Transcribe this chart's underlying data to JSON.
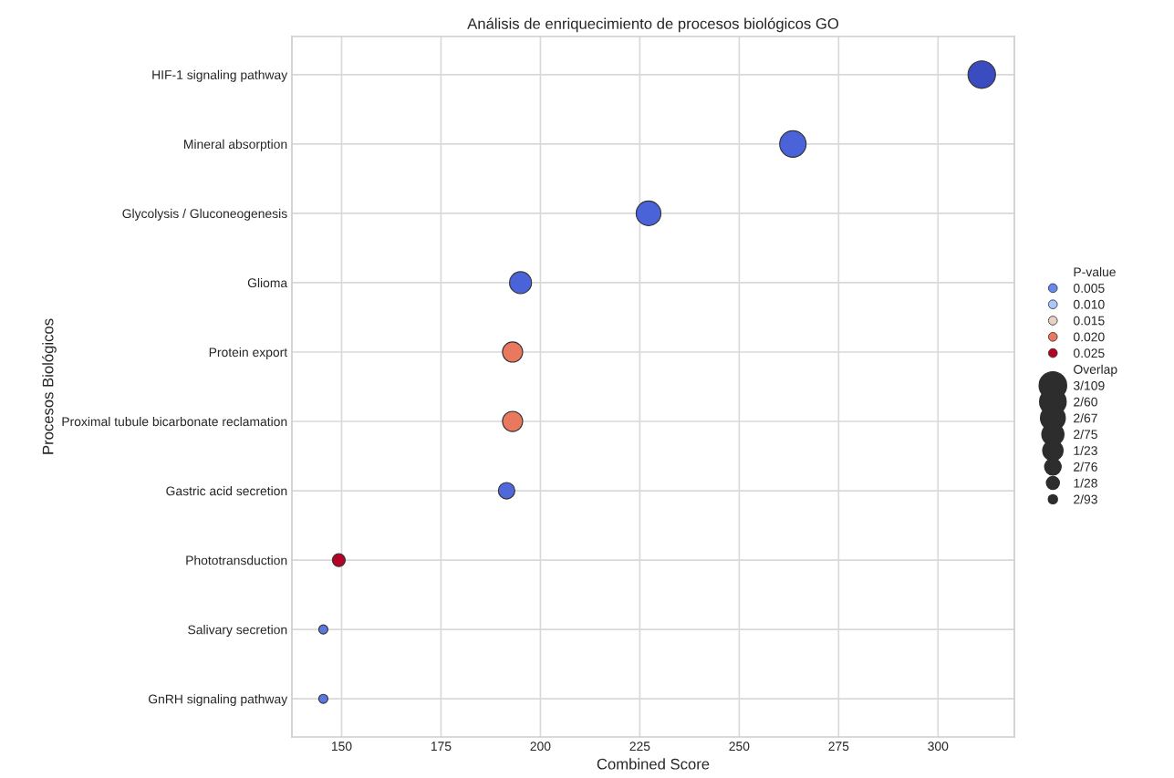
{
  "chart_data": {
    "type": "bubble",
    "title": "Análisis de enriquecimiento de procesos biológicos GO",
    "xlabel": "Combined Score",
    "ylabel": "Procesos Biológicos",
    "categories": [
      "HIF-1 signaling pathway",
      "Mineral absorption",
      "Glycolysis / Gluconeogenesis",
      "Glioma",
      "Protein export",
      "Proximal tubule bicarbonate reclamation",
      "Gastric acid secretion",
      "Phototransduction",
      "Salivary secretion",
      "GnRH signaling pathway"
    ],
    "series": [
      {
        "name": "0.005",
        "color": "#6788ee",
        "values": [
          311.0,
          263.5,
          227.2,
          195.0,
          null,
          null,
          191.5,
          null,
          145.4,
          145.4
        ],
        "sizes": [
          1,
          0.93,
          0.81,
          0.64,
          null,
          null,
          0.36,
          null,
          0.11,
          0.11
        ],
        "colors": [
          "#3b4cc0",
          "#4a63d8",
          "#4a63d8",
          "#4a63d8",
          null,
          null,
          "#4f69d9",
          null,
          "#5a78e0",
          "#5a78e0"
        ]
      },
      {
        "name": "0.010",
        "color": "#aac7fd",
        "values": [
          null,
          null,
          null,
          null,
          null,
          null,
          null,
          null,
          null,
          null
        ]
      },
      {
        "name": "0.015",
        "color": "#ead0c2",
        "values": [
          null,
          null,
          null,
          null,
          null,
          null,
          null,
          null,
          null,
          null
        ]
      },
      {
        "name": "0.020",
        "color": "#e8795e",
        "values": [
          null,
          null,
          null,
          null,
          193.0,
          193.0,
          null,
          null,
          null,
          null
        ],
        "sizes": [
          null,
          null,
          null,
          null,
          0.54,
          0.54,
          null,
          null,
          null,
          null
        ]
      },
      {
        "name": "0.025",
        "color": "#b40426",
        "values": [
          null,
          null,
          null,
          null,
          null,
          null,
          null,
          149.3,
          null,
          null
        ],
        "sizes": [
          null,
          null,
          null,
          null,
          null,
          null,
          null,
          0.22,
          null,
          null
        ]
      }
    ],
    "legend_title": "P-value",
    "annotations": [
      "Overlap"
    ],
    "size_legend": [
      {
        "value": 1,
        "label": "3/109"
      },
      {
        "value": 0.93,
        "label": "2/60"
      },
      {
        "value": 0.81,
        "label": "2/67"
      },
      {
        "value": 0.64,
        "label": "2/75"
      },
      {
        "value": 0.54,
        "label": "1/23"
      },
      {
        "value": 0.36,
        "label": "2/76"
      },
      {
        "value": 0.22,
        "label": "1/28"
      },
      {
        "value": 0.11,
        "label": "2/93"
      }
    ],
    "xlim": [
      137.5,
      319.2
    ],
    "xticks": [
      150,
      175,
      200,
      225,
      250,
      275,
      300
    ],
    "orientation": "horizontal",
    "grid": true,
    "legend": "right",
    "marker": "circle"
  }
}
